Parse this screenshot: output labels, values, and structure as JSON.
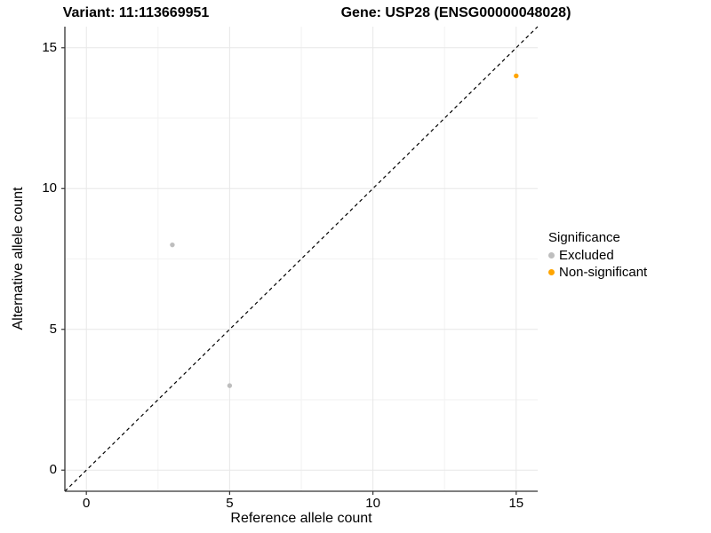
{
  "chart_data": {
    "type": "scatter",
    "titles": {
      "variant": "Variant: 11:113669951",
      "gene": "Gene: USP28 (ENSG00000048028)"
    },
    "xlabel": "Reference allele count",
    "ylabel": "Alternative allele count",
    "xlim": [
      0,
      15
    ],
    "ylim": [
      0,
      15
    ],
    "x_major_ticks": [
      0,
      5,
      10,
      15
    ],
    "y_major_ticks": [
      0,
      5,
      10,
      15
    ],
    "x_minor_ticks": [
      2.5,
      7.5,
      12.5
    ],
    "y_minor_ticks": [
      2.5,
      7.5,
      12.5
    ],
    "grid": true,
    "legend_position": "right",
    "reference_line": {
      "type": "identity",
      "slope": 1,
      "intercept": 0,
      "style": "dashed",
      "color": "#000000"
    },
    "series": [
      {
        "name": "Excluded",
        "color": "#BEBEBE",
        "points": [
          {
            "x": 3,
            "y": 8
          },
          {
            "x": 5,
            "y": 3
          }
        ]
      },
      {
        "name": "Non-significant",
        "color": "#FFA500",
        "points": [
          {
            "x": 15,
            "y": 14
          }
        ]
      }
    ],
    "legend": {
      "title": "Significance"
    },
    "style_colors": {
      "grid_major": "#E7E7E7",
      "grid_minor": "#F2F2F2",
      "axis_line": "#333333",
      "text": "#000000"
    }
  }
}
